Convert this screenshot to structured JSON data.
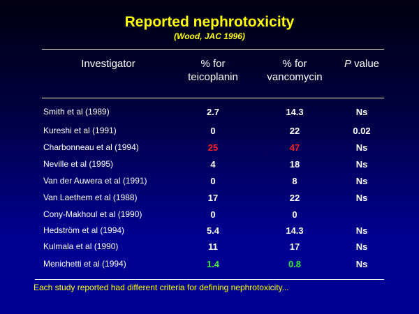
{
  "title": "Reported nephrotoxicity",
  "subtitle": "(Wood, JAC 1996)",
  "headers": {
    "investigator": "Investigator",
    "teico_1": "% for",
    "teico_2": "teicoplanin",
    "vanco_1": "% for",
    "vanco_2": "vancomycin",
    "p_italic": "P",
    "p_rest": " value"
  },
  "rows": [
    {
      "name": "Smith et al  (1989)",
      "teico": "2.7",
      "vanco": "14.3",
      "p": "Ns"
    },
    {
      "name": "Kureshi et al  (1991)",
      "teico": "0",
      "vanco": "22",
      "p": "0.02"
    },
    {
      "name": "Charbonneau et al  (1994)",
      "teico": "25",
      "vanco": "47",
      "p": "Ns",
      "color": "#ff2020"
    },
    {
      "name": "Neville et al  (1995)",
      "teico": "4",
      "vanco": "18",
      "p": "Ns"
    },
    {
      "name": "Van der Auwera et al (1991)",
      "teico": "0",
      "vanco": "8",
      "p": "Ns"
    },
    {
      "name": "Van Laethem et al (1988)",
      "teico": "17",
      "vanco": "22",
      "p": "Ns"
    },
    {
      "name": "Cony-Makhoul et al (1990)",
      "teico": "0",
      "vanco": "0",
      "p": ""
    },
    {
      "name": "Hedström et al  (1994)",
      "teico": "5.4",
      "vanco": "14.3",
      "p": "Ns"
    },
    {
      "name": "Kulmala et al  (1990)",
      "teico": "11",
      "vanco": "17",
      "p": "Ns"
    },
    {
      "name": "Menichetti et al  (1994)",
      "teico": "1.4",
      "vanco": "0.8",
      "p": "Ns",
      "color": "#33ee33"
    }
  ],
  "footnote": "Each study reported had different criteria for defining nephrotoxicity..."
}
